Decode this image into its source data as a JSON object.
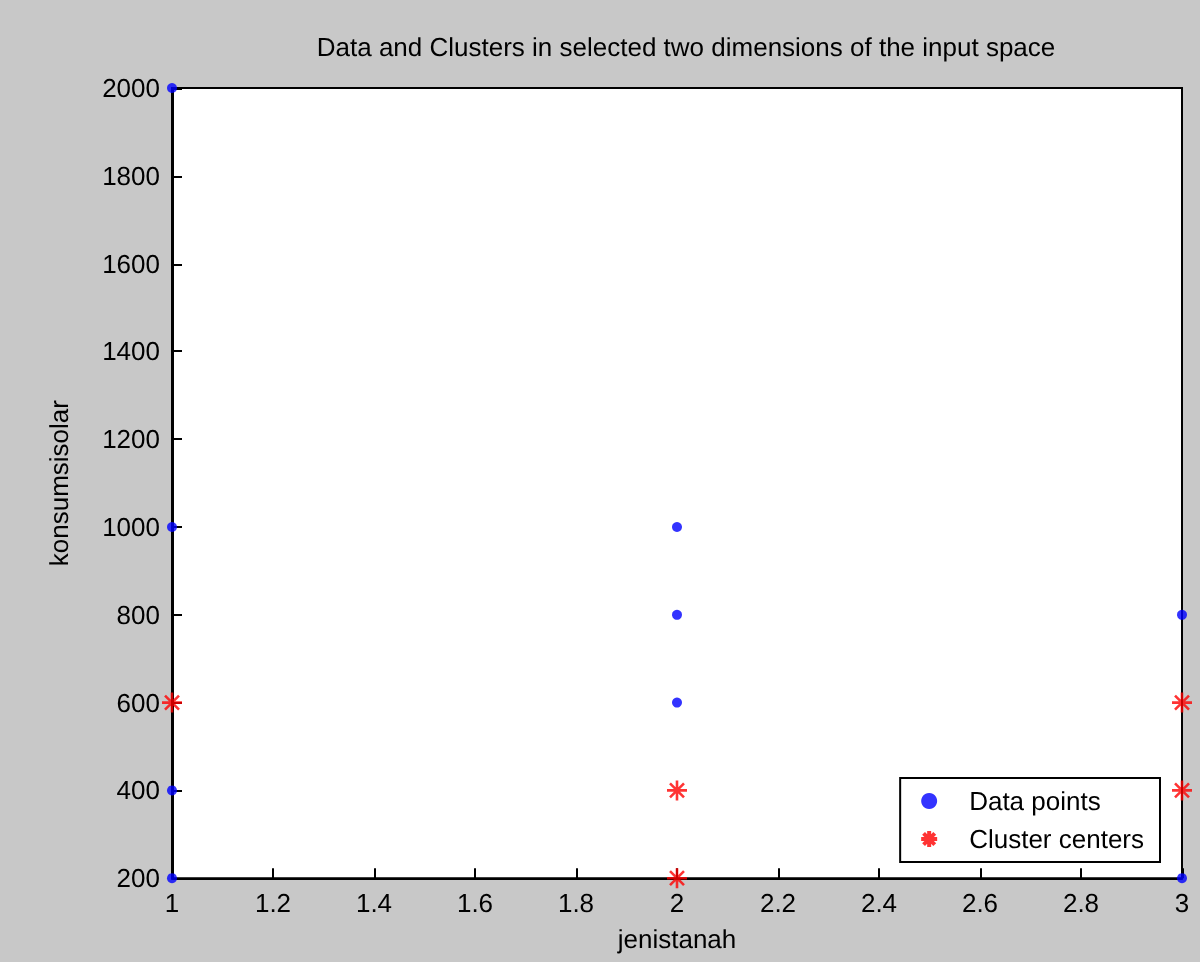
{
  "chart_data": {
    "type": "scatter",
    "title": "Data and Clusters in selected two dimensions of the input space",
    "xlabel": "jenistanah",
    "ylabel": "konsumsisolar",
    "xlim": [
      1,
      3
    ],
    "xticks": [
      1,
      1.2,
      1.4,
      1.6,
      1.8,
      2,
      2.2,
      2.4,
      2.6,
      2.8,
      3
    ],
    "ylim": [
      200,
      2000
    ],
    "yticks": [
      200,
      400,
      600,
      800,
      1000,
      1200,
      1400,
      1600,
      1800,
      2000
    ],
    "grid": false,
    "legend": "bottom right",
    "series": [
      {
        "name": "Data points",
        "color": "#0000ff",
        "marker": "circle",
        "x": [
          1,
          1,
          1,
          1,
          2,
          2,
          2,
          3,
          3
        ],
        "values": [
          2000,
          1000,
          400,
          200,
          1000,
          800,
          600,
          800,
          200
        ]
      },
      {
        "name": "Cluster centers",
        "color": "#ff0000",
        "marker": "cross",
        "x": [
          1,
          2,
          2,
          3,
          3
        ],
        "values": [
          600,
          400,
          200,
          600,
          400
        ]
      }
    ]
  }
}
